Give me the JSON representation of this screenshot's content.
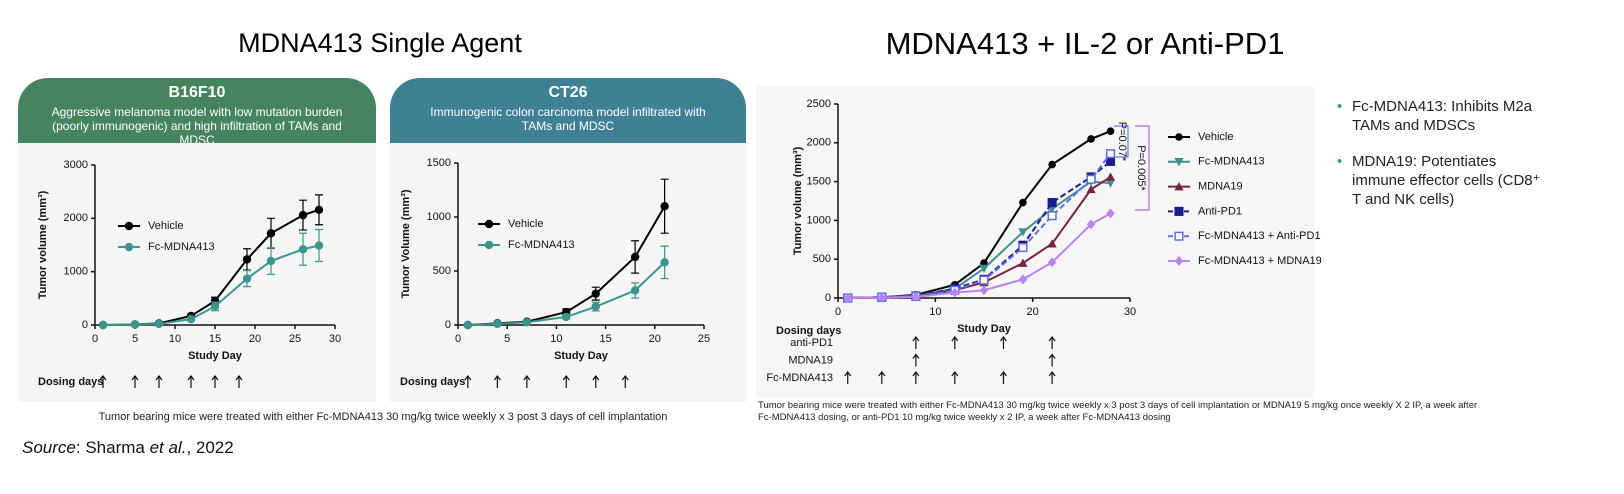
{
  "slide": {
    "left_title": "MDNA413 Single Agent",
    "right_title": "MDNA413 + IL-2 or Anti-PD1",
    "left_caption": "Tumor bearing mice were treated with either Fc-MDNA413 30 mg/kg twice weekly x 3 post 3 days of cell implantation",
    "right_caption": [
      "Tumor bearing mice were treated with either Fc-MDNA413 30 mg/kg twice weekly x 3 post 3 days of cell implantation or MDNA19 5 mg/kg  once weekly X 2 IP, a week after",
      "Fc-MDNA413 dosing, or anti-PD1 10 mg/kg twice weekly x 2 IP, a week after Fc-MDNA413 dosing"
    ],
    "bullets": [
      "Fc-MDNA413: Inhibits M2a TAMs and MDSCs",
      "MDNA19: Potentiates immune effector cells (CD8⁺ T and NK cells)"
    ],
    "source": [
      "Source",
      ": Sharma ",
      "et al.",
      ", 2022"
    ]
  },
  "chart_data": [
    {
      "type": "line",
      "title": "B16F10",
      "subtitle": "Aggressive melanoma model with low mutation burden (poorly immunogenic) and high infiltration of TAMs and MDSC",
      "xlabel": "Study Day",
      "ylabel": "Tumor volume (mm³)",
      "x": [
        1,
        5,
        8,
        12,
        15,
        19,
        22,
        26,
        28
      ],
      "xlim": [
        0,
        30
      ],
      "xticks": [
        0,
        5,
        10,
        15,
        20,
        25,
        30
      ],
      "ylim": [
        0,
        3000
      ],
      "yticks": [
        0,
        1000,
        2000,
        3000
      ],
      "legend": "upper-left",
      "series": [
        {
          "name": "Vehicle",
          "color": "#000000",
          "marker": "circle",
          "values": [
            0,
            10,
            30,
            170,
            450,
            1230,
            1720,
            2060,
            2160
          ],
          "errors": [
            5,
            5,
            10,
            30,
            70,
            200,
            280,
            280,
            280
          ]
        },
        {
          "name": "Fc-MDNA413",
          "color": "#3b9490",
          "marker": "circle",
          "values": [
            0,
            10,
            20,
            110,
            350,
            870,
            1200,
            1420,
            1490
          ],
          "errors": [
            5,
            5,
            10,
            30,
            80,
            150,
            250,
            300,
            300
          ]
        }
      ],
      "dosing": {
        "label": "Dosing days",
        "rows": [
          {
            "days": [
              1,
              5,
              8,
              12,
              15,
              18
            ]
          }
        ]
      }
    },
    {
      "type": "line",
      "title": "CT26",
      "subtitle": "Immunogenic colon carcinoma model infiltrated with TAMs and MDSC",
      "xlabel": "Study Day",
      "ylabel": "Tumor Volume (mm³)",
      "x": [
        1,
        4,
        7,
        11,
        14,
        18,
        21
      ],
      "xlim": [
        0,
        25
      ],
      "xticks": [
        0,
        5,
        10,
        15,
        20,
        25
      ],
      "ylim": [
        0,
        1500
      ],
      "yticks": [
        0,
        500,
        1000,
        1500
      ],
      "legend": "upper-left",
      "series": [
        {
          "name": "Vehicle",
          "color": "#000000",
          "marker": "circle",
          "values": [
            0,
            15,
            30,
            120,
            290,
            630,
            1100
          ],
          "errors": [
            3,
            5,
            10,
            30,
            60,
            150,
            250
          ]
        },
        {
          "name": "Fc-MDNA413",
          "color": "#3b9490",
          "marker": "circle",
          "values": [
            0,
            10,
            25,
            75,
            170,
            320,
            580
          ],
          "errors": [
            3,
            5,
            5,
            20,
            40,
            70,
            150
          ]
        }
      ],
      "dosing": {
        "label": "Dosing days",
        "rows": [
          {
            "days": [
              1,
              4,
              7,
              11,
              14,
              17
            ]
          }
        ]
      }
    },
    {
      "type": "line",
      "xlabel": "Study Day",
      "ylabel": "Tumor volume (mm³)",
      "x": [
        1,
        4.5,
        8,
        12,
        15,
        19,
        22,
        26,
        28
      ],
      "xlim": [
        0,
        30
      ],
      "xticks": [
        0,
        10,
        20,
        30
      ],
      "ylim": [
        0,
        2500
      ],
      "yticks": [
        0,
        500,
        1000,
        1500,
        2000,
        2500
      ],
      "legend": "right",
      "series": [
        {
          "name": "Vehicle",
          "color": "#000000",
          "marker": "circle",
          "values": [
            0,
            10,
            40,
            170,
            450,
            1230,
            1720,
            2050,
            2150
          ]
        },
        {
          "name": "Fc-MDNA413",
          "color": "#3f8f8c",
          "marker": "triangle-down",
          "values": [
            0,
            10,
            30,
            120,
            380,
            850,
            1150,
            1500,
            1480
          ]
        },
        {
          "name": "MDNA19",
          "color": "#7b2240",
          "marker": "triangle",
          "values": [
            0,
            10,
            20,
            100,
            200,
            450,
            700,
            1400,
            1560
          ]
        },
        {
          "name": "Anti-PD1",
          "color": "#1c1c8c",
          "marker": "square",
          "dashed": true,
          "values": [
            0,
            10,
            25,
            120,
            240,
            680,
            1230,
            1560,
            1760
          ]
        },
        {
          "name": "Fc-MDNA413 + Anti-PD1",
          "color": "#5b6ee8",
          "marker": "square-open",
          "dashed": true,
          "values": [
            0,
            10,
            20,
            100,
            230,
            650,
            1060,
            1530,
            1860
          ]
        },
        {
          "name": "Fc-MDNA413 + MDNA19",
          "color": "#b983f0",
          "marker": "diamond",
          "values": [
            0,
            5,
            15,
            70,
            100,
            240,
            460,
            950,
            1090
          ]
        }
      ],
      "annotations": [
        {
          "text": "P=0.07*",
          "color": "#6a7bef"
        },
        {
          "text": "P=0.005*",
          "color": "#b06ad8"
        }
      ],
      "dosing": {
        "label": "Dosing days",
        "rows": [
          {
            "name": "anti-PD1",
            "days": [
              8,
              12,
              17,
              22
            ]
          },
          {
            "name": "MDNA19",
            "days": [
              8,
              22
            ]
          },
          {
            "name": "Fc-MDNA413",
            "days": [
              1,
              4.5,
              8,
              12,
              17,
              22
            ]
          }
        ]
      }
    }
  ]
}
